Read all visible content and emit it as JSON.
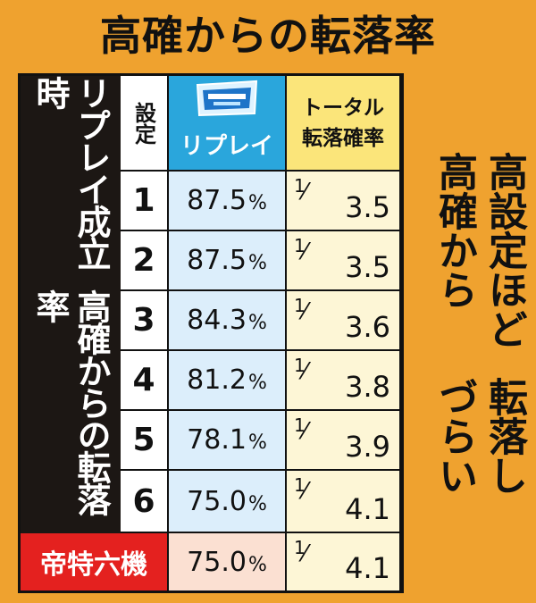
{
  "title": "高確からの転落率",
  "side_title": [
    "リプレイ成立時",
    "高確からの転落率"
  ],
  "headers": {
    "setting": "設定",
    "replay": "リプレイ",
    "total_line1": "トータル",
    "total_line2": "転落確率"
  },
  "rows": [
    {
      "setting": "1",
      "replay": "87.5",
      "total": "3.5"
    },
    {
      "setting": "2",
      "replay": "87.5",
      "total": "3.5"
    },
    {
      "setting": "3",
      "replay": "84.3",
      "total": "3.6"
    },
    {
      "setting": "4",
      "replay": "81.2",
      "total": "3.8"
    },
    {
      "setting": "5",
      "replay": "78.1",
      "total": "3.9"
    },
    {
      "setting": "6",
      "replay": "75.0",
      "total": "4.1"
    }
  ],
  "special": {
    "label": "帝特六機",
    "replay": "75.0",
    "total": "4.1"
  },
  "percent_sign": "%",
  "fraction_numerator": "1",
  "fraction_slash": "⁄",
  "right_text": [
    "高設定ほど高確から",
    "転落しづらい"
  ],
  "colors": {
    "background": "#efa22f",
    "replay_header": "#2aa6dc",
    "total_header": "#fbe57a",
    "special": "#e4211f"
  }
}
